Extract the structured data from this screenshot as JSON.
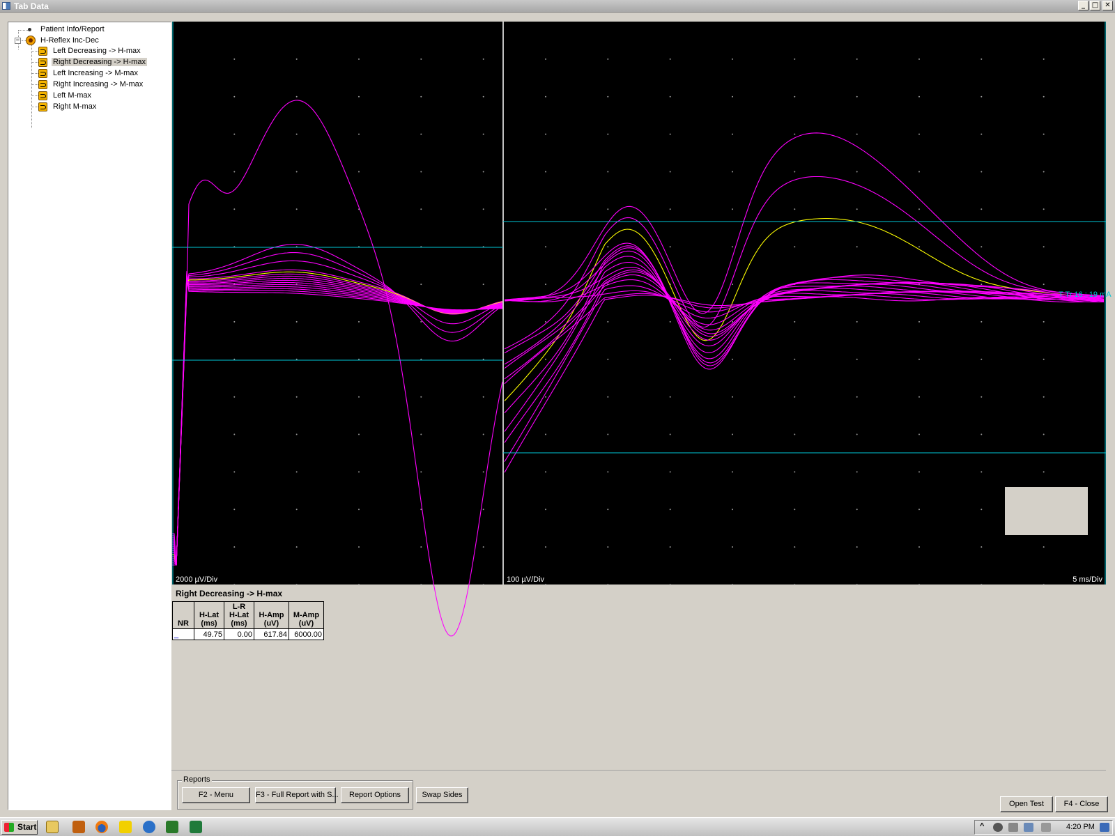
{
  "window": {
    "title": "Tab Data",
    "controls": [
      "_",
      "□",
      "✕"
    ]
  },
  "tree": {
    "root_item": "Patient Info/Report",
    "group": "H-Reflex Inc-Dec",
    "expand_glyph": "−",
    "items": [
      {
        "label": "Left Decreasing -> H-max",
        "selected": false
      },
      {
        "label": "Right Decreasing -> H-max",
        "selected": true
      },
      {
        "label": "Left Increasing -> M-max",
        "selected": false
      },
      {
        "label": "Right Increasing -> M-max",
        "selected": false
      },
      {
        "label": "Left M-max",
        "selected": false
      },
      {
        "label": "Right M-max",
        "selected": false
      }
    ]
  },
  "scope": {
    "left_sensitivity": "2000 µV/Div",
    "right_sensitivity": "100 µV/Div",
    "timebase": "5 ms/Div",
    "marker_label": "T Tr 16 : 19 mA",
    "trace_color": "#ff00ff",
    "highlight_trace_color": "#ffff00",
    "cursor_color": "#00c8d8",
    "grid_dot_color": "#9a9a9a"
  },
  "results": {
    "title": "Right Decreasing -> H-max",
    "headers": [
      [
        "",
        "",
        "NR"
      ],
      [
        "",
        "H-Lat",
        "(ms)"
      ],
      [
        "L-R",
        "H-Lat",
        "(ms)"
      ],
      [
        "",
        "H-Amp",
        "(uV)"
      ],
      [
        "",
        "M-Amp",
        "(uV)"
      ]
    ],
    "row": [
      "_",
      "49.75",
      "0.00",
      "617.84",
      "6000.00"
    ]
  },
  "reports_group": {
    "label": "Reports",
    "buttons": [
      "F2 - Menu",
      "F3 - Full Report with S...",
      "Report Options"
    ]
  },
  "buttons": {
    "swap_sides": "Swap Sides",
    "open_test": "Open Test",
    "close": "F4 - Close"
  },
  "taskbar": {
    "start_label": "Start",
    "clock": "4:20 PM",
    "tray_chevron": "^"
  }
}
